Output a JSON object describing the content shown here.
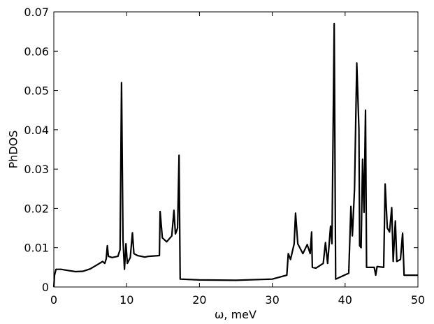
{
  "chart_data": {
    "type": "line",
    "xlabel": "ω, meV",
    "ylabel": "PhDOS",
    "xlim": [
      0,
      50
    ],
    "ylim": [
      0,
      0.07
    ],
    "xticks": [
      0,
      10,
      20,
      30,
      40,
      50
    ],
    "yticks": [
      0,
      0.01,
      0.02,
      0.03,
      0.04,
      0.05,
      0.06,
      0.07
    ],
    "series": [
      {
        "color": "#000000",
        "x": [
          0,
          0.1,
          0.3,
          1,
          2,
          3,
          4,
          5,
          6,
          6.7,
          7.0,
          7.2,
          7.35,
          7.5,
          8,
          8.8,
          9.1,
          9.3,
          9.5,
          9.7,
          9.9,
          10.1,
          10.5,
          10.8,
          11.0,
          11.5,
          12,
          12.5,
          13,
          14.5,
          14.6,
          14.9,
          15.5,
          16.2,
          16.5,
          16.7,
          17.0,
          17.2,
          17.35,
          20,
          25,
          30,
          32,
          32.2,
          32.5,
          33.0,
          33.2,
          33.5,
          34.2,
          34.8,
          35.2,
          35.4,
          35.5,
          36,
          37,
          37.3,
          37.6,
          38.0,
          38.2,
          38.5,
          38.7,
          40.5,
          40.8,
          41.0,
          41.3,
          41.6,
          41.9,
          42.0,
          42.2,
          42.4,
          42.6,
          42.8,
          42.95,
          44,
          44.2,
          44.4,
          45.3,
          45.5,
          45.8,
          46.1,
          46.4,
          46.6,
          46.9,
          47.1,
          47.6,
          47.9,
          48.1,
          50
        ],
        "values": [
          0.0,
          0.003,
          0.0045,
          0.0045,
          0.0042,
          0.0039,
          0.004,
          0.0046,
          0.0057,
          0.0065,
          0.006,
          0.0072,
          0.0105,
          0.0078,
          0.0075,
          0.0078,
          0.0095,
          0.052,
          0.012,
          0.0045,
          0.011,
          0.006,
          0.0075,
          0.0138,
          0.0085,
          0.008,
          0.0078,
          0.0076,
          0.0078,
          0.008,
          0.0192,
          0.0125,
          0.0115,
          0.013,
          0.0195,
          0.0135,
          0.015,
          0.0335,
          0.002,
          0.0018,
          0.0017,
          0.002,
          0.003,
          0.0085,
          0.007,
          0.011,
          0.0188,
          0.011,
          0.0085,
          0.0108,
          0.0085,
          0.014,
          0.005,
          0.0048,
          0.006,
          0.0113,
          0.006,
          0.0155,
          0.011,
          0.067,
          0.002,
          0.0035,
          0.0205,
          0.013,
          0.025,
          0.057,
          0.04,
          0.0105,
          0.01,
          0.0325,
          0.019,
          0.045,
          0.005,
          0.005,
          0.003,
          0.0052,
          0.005,
          0.0262,
          0.015,
          0.014,
          0.0202,
          0.0065,
          0.0168,
          0.0065,
          0.007,
          0.0137,
          0.003,
          0.003
        ]
      }
    ]
  }
}
